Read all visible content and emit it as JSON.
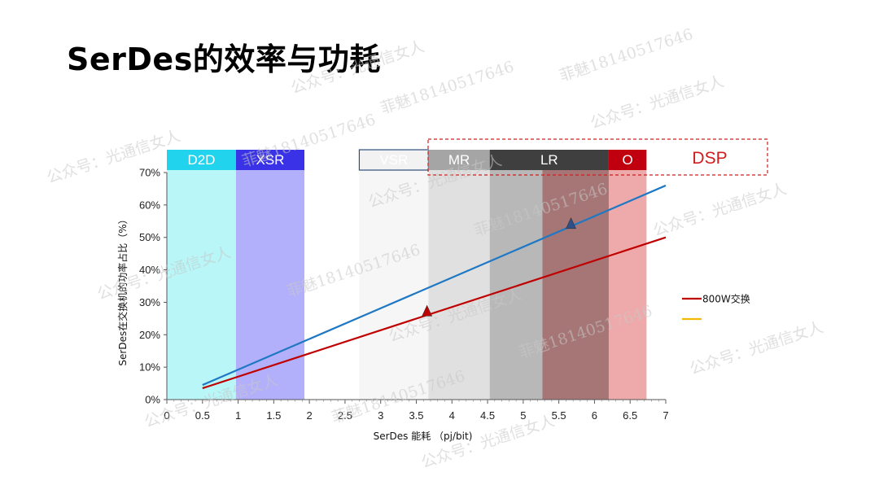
{
  "page": {
    "title": "SerDes的效率与功耗"
  },
  "chart_data": {
    "type": "line",
    "xlabel": "SerDes 能耗 （pj/bit)",
    "ylabel": "SerDes在交换机的功率占比（%）",
    "xlim": [
      0,
      7
    ],
    "ylim": [
      0,
      70
    ],
    "x_ticks": [
      "0",
      "0.5",
      "1",
      "1.5",
      "2",
      "2.5",
      "3",
      "3.5",
      "4",
      "4.5",
      "5",
      "5.5",
      "6",
      "6.5",
      "7"
    ],
    "y_ticks": [
      "0%",
      "10%",
      "20%",
      "30%",
      "40%",
      "50%",
      "60%",
      "70%"
    ],
    "bands": [
      {
        "label": "D2D",
        "x0": 0,
        "x1": 0.97,
        "fill": "#b8f6f8",
        "header": "#22d3ee",
        "outlined": false
      },
      {
        "label": "XSR",
        "x0": 0.97,
        "x1": 1.93,
        "fill": "#b3b0fb",
        "header": "#3a32e6",
        "outlined": false
      },
      {
        "label": "VSR",
        "x0": 2.7,
        "x1": 3.67,
        "fill": "#f6f6f6",
        "header": "#f2f2f2",
        "outlined": true
      },
      {
        "label": "MR",
        "x0": 3.67,
        "x1": 4.53,
        "fill": "#e0e0e0",
        "header": "#a5a5a5",
        "outlined": false
      },
      {
        "label": "LR",
        "x0": 4.53,
        "x1": 6.2,
        "fill": "#b8b8b8",
        "header": "#3f3f3f",
        "outlined": false
      },
      {
        "label": "O",
        "x0": 6.2,
        "x1": 6.73,
        "fill": "#eeaaaa",
        "header": "#c0000f",
        "outlined": false
      }
    ],
    "lr_overlay": {
      "x0": 5.27,
      "x1": 6.2,
      "fill": "#a67676"
    },
    "dsp_label": "DSP",
    "series": [
      {
        "name": "",
        "color": "#1f78c4",
        "x": [
          0.5,
          7.0
        ],
        "y": [
          4.5,
          66.0
        ]
      },
      {
        "name": "800W交换",
        "color": "#c00000",
        "x": [
          0.5,
          7.0
        ],
        "y": [
          3.5,
          50.0
        ]
      },
      {
        "name": "",
        "color": "#f5b800",
        "x": [],
        "y": []
      }
    ],
    "markers": [
      {
        "x": 3.65,
        "y": 27.0,
        "color": "#c00000"
      },
      {
        "x": 5.67,
        "y": 54.0,
        "color": "#2e4f8a"
      }
    ]
  },
  "watermarks": [
    {
      "text": "菲魅18140517646"
    },
    {
      "text": "公众号：光通信女人"
    }
  ]
}
